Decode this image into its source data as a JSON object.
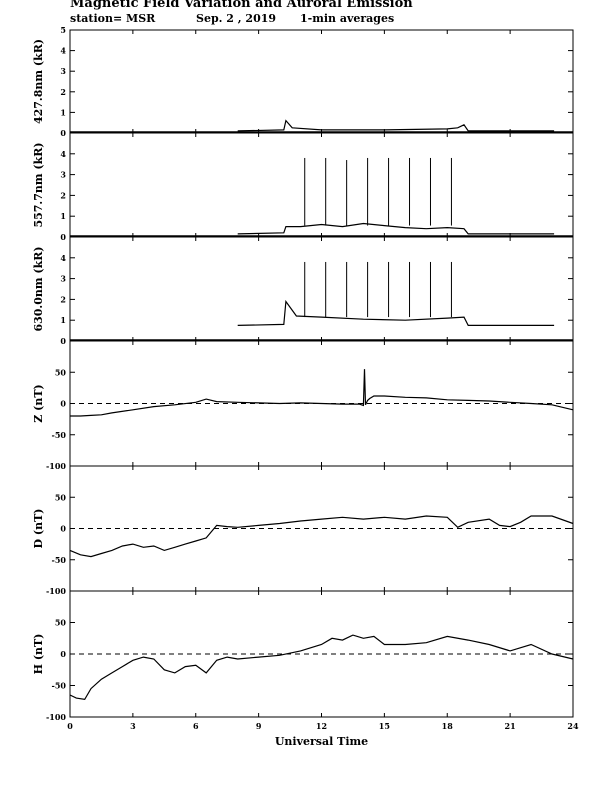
{
  "header": {
    "title": "Magnetic Field Variation and Auroral Emission",
    "station": "station= MSR",
    "date": "Sep. 2  , 2019",
    "averaging": "1-min averages"
  },
  "chart_data": [
    {
      "type": "line",
      "ylabel": "427.8nm (kR)",
      "x_range": [
        0,
        24
      ],
      "ylim": [
        0,
        5
      ],
      "yticks": [
        "0",
        "1",
        "2",
        "3",
        "4",
        "5"
      ],
      "zero_line": false,
      "data_window": [
        8.0,
        23.1
      ],
      "series": [
        {
          "x": [
            8.0,
            10.2,
            10.3,
            10.6,
            12,
            15,
            18,
            18.5,
            18.8,
            19.0,
            21,
            23.1
          ],
          "y": [
            0.1,
            0.15,
            0.6,
            0.25,
            0.15,
            0.15,
            0.2,
            0.25,
            0.4,
            0.1,
            0.1,
            0.1
          ]
        }
      ],
      "spikes": []
    },
    {
      "type": "line",
      "ylabel": "557.7nm (kR)",
      "x_range": [
        0,
        24
      ],
      "ylim": [
        0,
        5
      ],
      "yticks": [
        "0",
        "1",
        "2",
        "3",
        "4"
      ],
      "zero_line": false,
      "data_window": [
        8.0,
        23.1
      ],
      "series": [
        {
          "x": [
            8.0,
            10.2,
            10.3,
            11,
            12,
            13,
            14,
            15,
            16,
            17,
            18,
            18.8,
            19.0,
            21,
            23.1
          ],
          "y": [
            0.15,
            0.2,
            0.5,
            0.5,
            0.6,
            0.5,
            0.65,
            0.55,
            0.45,
            0.4,
            0.45,
            0.4,
            0.15,
            0.15,
            0.15
          ]
        }
      ],
      "spikes": [
        {
          "x": 11.2,
          "y": 3.8
        },
        {
          "x": 12.2,
          "y": 3.8
        },
        {
          "x": 13.2,
          "y": 3.7
        },
        {
          "x": 14.2,
          "y": 3.8
        },
        {
          "x": 15.2,
          "y": 3.8
        },
        {
          "x": 16.2,
          "y": 3.8
        },
        {
          "x": 17.2,
          "y": 3.8
        },
        {
          "x": 18.2,
          "y": 3.8
        }
      ]
    },
    {
      "type": "line",
      "ylabel": "630.0nm (kR)",
      "x_range": [
        0,
        24
      ],
      "ylim": [
        0,
        5
      ],
      "yticks": [
        "0",
        "1",
        "2",
        "3",
        "4"
      ],
      "zero_line": false,
      "data_window": [
        8.0,
        23.1
      ],
      "series": [
        {
          "x": [
            8.0,
            10.2,
            10.3,
            10.8,
            12,
            14,
            16,
            18,
            18.8,
            19.0,
            21,
            23.1
          ],
          "y": [
            0.75,
            0.8,
            1.9,
            1.2,
            1.15,
            1.05,
            1.0,
            1.1,
            1.15,
            0.75,
            0.75,
            0.75
          ]
        }
      ],
      "spikes": [
        {
          "x": 11.2,
          "y": 3.8
        },
        {
          "x": 12.2,
          "y": 3.8
        },
        {
          "x": 13.2,
          "y": 3.8
        },
        {
          "x": 14.2,
          "y": 3.8
        },
        {
          "x": 15.2,
          "y": 3.8
        },
        {
          "x": 16.2,
          "y": 3.8
        },
        {
          "x": 17.2,
          "y": 3.8
        },
        {
          "x": 18.2,
          "y": 3.8
        }
      ]
    },
    {
      "type": "line",
      "ylabel": "Z (nT)",
      "x_range": [
        0,
        24
      ],
      "ylim": [
        -100,
        100
      ],
      "yticks": [
        "-100",
        "-50",
        "0",
        "50"
      ],
      "zero_line": true,
      "series": [
        {
          "x": [
            0,
            0.5,
            1,
            1.5,
            2,
            3,
            4,
            5,
            6,
            6.5,
            7,
            8,
            9,
            10,
            11,
            12,
            13,
            13.8,
            14.0,
            14.05,
            14.1,
            14.2,
            14.3,
            14.5,
            15,
            16,
            17,
            18,
            19,
            20,
            21,
            22,
            23,
            24
          ],
          "y": [
            -20,
            -20,
            -19,
            -18,
            -15,
            -10,
            -5,
            -2,
            2,
            7,
            3,
            2,
            1,
            0,
            1,
            0,
            -1,
            -1,
            -3,
            55,
            -2,
            5,
            8,
            12,
            12,
            10,
            9,
            6,
            5,
            4,
            2,
            0,
            -2,
            -10
          ]
        }
      ],
      "spikes": []
    },
    {
      "type": "line",
      "ylabel": "D (nT)",
      "x_range": [
        0,
        24
      ],
      "ylim": [
        -100,
        100
      ],
      "yticks": [
        "-100",
        "-50",
        "0",
        "50"
      ],
      "zero_line": true,
      "series": [
        {
          "x": [
            0,
            0.5,
            1,
            1.5,
            2,
            2.5,
            3,
            3.5,
            4,
            4.5,
            5,
            5.5,
            6,
            6.5,
            7,
            7.5,
            8,
            9,
            10,
            11,
            12,
            13,
            14,
            15,
            16,
            17,
            18,
            18.5,
            19,
            20,
            20.5,
            21,
            21.5,
            22,
            23,
            24
          ],
          "y": [
            -35,
            -42,
            -45,
            -40,
            -35,
            -28,
            -25,
            -30,
            -28,
            -35,
            -30,
            -25,
            -20,
            -15,
            5,
            3,
            2,
            5,
            8,
            12,
            15,
            18,
            15,
            18,
            15,
            20,
            18,
            2,
            10,
            15,
            5,
            3,
            10,
            20,
            20,
            8
          ]
        }
      ],
      "spikes": []
    },
    {
      "type": "line",
      "ylabel": "H (nT)",
      "x_range": [
        0,
        24
      ],
      "ylim": [
        -100,
        100
      ],
      "yticks": [
        "-100",
        "-50",
        "0",
        "50"
      ],
      "zero_line": true,
      "series": [
        {
          "x": [
            0,
            0.3,
            0.7,
            1,
            1.5,
            2,
            2.5,
            3,
            3.5,
            4,
            4.5,
            5,
            5.5,
            6,
            6.5,
            7,
            7.5,
            8,
            9,
            10,
            11,
            12,
            12.5,
            13,
            13.5,
            14,
            14.5,
            15,
            16,
            17,
            18,
            19,
            20,
            21,
            22,
            23,
            24
          ],
          "y": [
            -65,
            -70,
            -72,
            -55,
            -40,
            -30,
            -20,
            -10,
            -5,
            -8,
            -25,
            -30,
            -20,
            -18,
            -30,
            -10,
            -5,
            -8,
            -5,
            -2,
            5,
            15,
            25,
            22,
            30,
            25,
            28,
            15,
            15,
            18,
            28,
            22,
            15,
            5,
            15,
            0,
            -8
          ]
        }
      ],
      "spikes": []
    }
  ],
  "x_axis": {
    "label": "Universal Time",
    "ticks": [
      "0",
      "3",
      "6",
      "9",
      "12",
      "15",
      "18",
      "21",
      "24"
    ]
  }
}
